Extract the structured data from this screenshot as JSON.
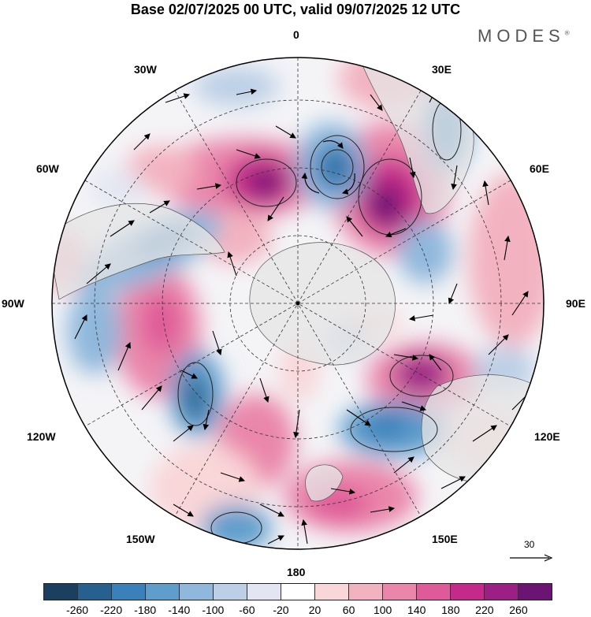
{
  "title": "Base 02/07/2025 00 UTC, valid 09/07/2025 12 UTC",
  "brand": "MODES",
  "brand_mark": "®",
  "labels": {
    "n0": "0",
    "n30e": "30E",
    "n60e": "60E",
    "n90e": "90E",
    "n120e": "120E",
    "n150e": "150E",
    "n180": "180",
    "n150w": "150W",
    "n120w": "120W",
    "n90w": "90W",
    "n60w": "60W",
    "n30w": "30W"
  },
  "reference_vector": "30",
  "colorbar": {
    "colors": [
      "#1b3f5e",
      "#27608e",
      "#3a80ba",
      "#5f9dcc",
      "#8fb8dc",
      "#bccfe6",
      "#e3e6f2",
      "#ffffff",
      "#f9d6d8",
      "#f3b2c0",
      "#ea86aa",
      "#df5a98",
      "#c52a8a",
      "#9c1f86",
      "#6b1474"
    ],
    "ticks": [
      "-260",
      "-220",
      "-180",
      "-140",
      "-100",
      "-60",
      "-20",
      "20",
      "60",
      "100",
      "140",
      "180",
      "220",
      "260"
    ]
  },
  "colors": {
    "land": "#e6e6e6",
    "coast": "#555555",
    "grid": "#333333"
  }
}
